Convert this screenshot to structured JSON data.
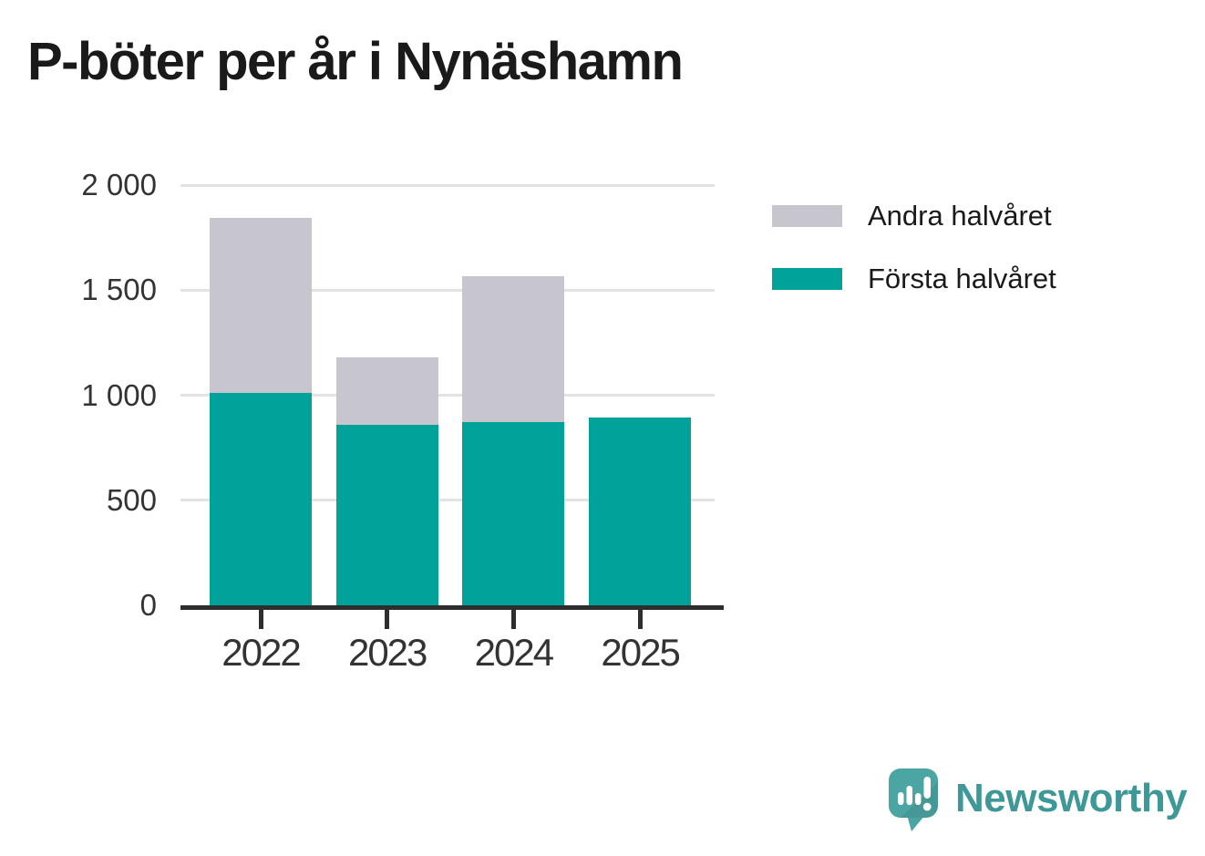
{
  "page": {
    "title": "P-böter per år i Nynäshamn"
  },
  "chart_data": {
    "type": "bar",
    "stacked": true,
    "title": "P-böter per år i Nynäshamn",
    "categories": [
      "2022",
      "2023",
      "2024",
      "2025"
    ],
    "series": [
      {
        "name": "Första halvåret",
        "color": "#00a29a",
        "values": [
          1010,
          858,
          871,
          894
        ]
      },
      {
        "name": "Andra halvåret",
        "color": "#c7c6ce",
        "values": [
          833,
          320,
          693,
          0
        ]
      }
    ],
    "ylim": [
      0,
      2000
    ],
    "yticks": [
      {
        "value": 0,
        "label": "0"
      },
      {
        "value": 500,
        "label": "500"
      },
      {
        "value": 1000,
        "label": "1 000"
      },
      {
        "value": 1500,
        "label": "1 500"
      },
      {
        "value": 2000,
        "label": "2 000"
      }
    ],
    "xlabel": "",
    "ylabel": "",
    "grid": "horizontal",
    "legend_position": "top-right",
    "legend": [
      {
        "label": "Andra halvåret",
        "color": "#c7c6ce"
      },
      {
        "label": "Första halvåret",
        "color": "#00a29a"
      }
    ]
  },
  "branding": {
    "wordmark": "Newsworthy",
    "logo_icon": "newsworthy-speech-bubble-bar-chart-icon",
    "wordmark_color": "#3e9897",
    "icon_color": "#4ba5a3"
  },
  "colors": {
    "background": "#ffffff",
    "axis": "#2e2e2e",
    "grid": "#e3e3e3",
    "tick_label": "#333333",
    "title": "#1a1a1a"
  }
}
